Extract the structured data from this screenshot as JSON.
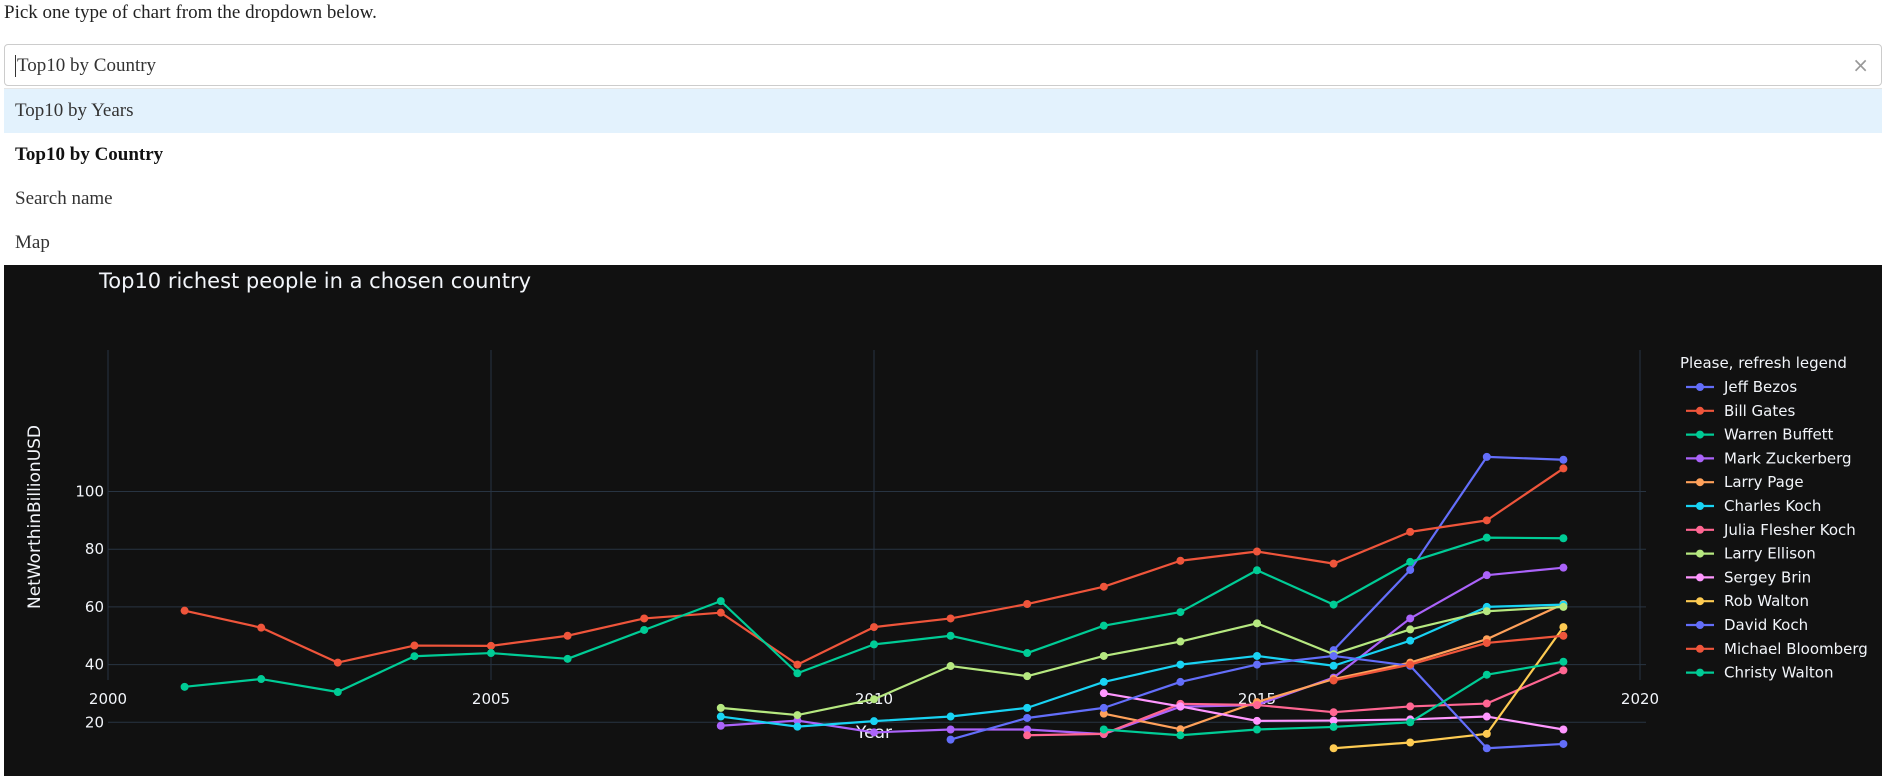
{
  "instruction": "Pick one type of chart from the dropdown below.",
  "dropdown": {
    "value": "Top10 by Country",
    "clear_icon": "×",
    "options": [
      "Top10 by Years",
      "Top10 by Country",
      "Search name",
      "Map"
    ]
  },
  "chart_data": {
    "type": "line",
    "title": "Top10 richest people in a chosen country",
    "xlabel": "Year",
    "ylabel": "NetWorthinBillionUSD",
    "xlim": [
      2000,
      2020
    ],
    "ylim": [
      0,
      120
    ],
    "xticks": [
      2000,
      2005,
      2010,
      2015,
      2020
    ],
    "yticks": [
      20,
      40,
      60,
      80,
      100
    ],
    "grid": true,
    "background": "#111111",
    "legend_title": "Please, refresh legend",
    "legend_position": "right",
    "series": [
      {
        "name": "Jeff Bezos",
        "color": "#636efa",
        "x": [
          2016,
          2017,
          2018,
          2019
        ],
        "y": [
          45,
          72.8,
          112,
          111
        ]
      },
      {
        "name": "Bill Gates",
        "color": "#ef553b",
        "x": [
          2001,
          2002,
          2003,
          2004,
          2005,
          2006,
          2007,
          2008,
          2009,
          2010,
          2011,
          2012,
          2013,
          2014,
          2015,
          2016,
          2017,
          2018,
          2019
        ],
        "y": [
          58.7,
          52.8,
          40.7,
          46.6,
          46.5,
          50,
          56,
          58,
          40,
          53,
          56,
          61,
          67,
          76,
          79.2,
          75,
          86,
          90,
          108
        ]
      },
      {
        "name": "Warren Buffett",
        "color": "#00cc96",
        "x": [
          2001,
          2002,
          2003,
          2004,
          2005,
          2006,
          2007,
          2008,
          2009,
          2010,
          2011,
          2012,
          2013,
          2014,
          2015,
          2016,
          2017,
          2018,
          2019
        ],
        "y": [
          32.3,
          35,
          30.5,
          42.9,
          44,
          42,
          52,
          62,
          37,
          47,
          50,
          44,
          53.5,
          58.2,
          72.7,
          60.8,
          75.6,
          84,
          83.8
        ]
      },
      {
        "name": "Mark Zuckerberg",
        "color": "#ab63fa",
        "x": [
          2008,
          2009,
          2010,
          2011,
          2012,
          2013,
          2014,
          2015,
          2016,
          2017,
          2018,
          2019
        ],
        "y": [
          18.8,
          20.6,
          16.5,
          17.5,
          17.5,
          15.9,
          25.4,
          26,
          35.5,
          56,
          71,
          73.6
        ]
      },
      {
        "name": "Larry Page",
        "color": "#ffa15a",
        "x": [
          2013,
          2014,
          2015,
          2016,
          2017,
          2018,
          2019
        ],
        "y": [
          23,
          17.6,
          27,
          35,
          40.7,
          48.8,
          61
        ]
      },
      {
        "name": "Charles Koch",
        "color": "#19d3f3",
        "x": [
          2008,
          2009,
          2010,
          2011,
          2012,
          2013,
          2014,
          2015,
          2016,
          2017,
          2018,
          2019
        ],
        "y": [
          22,
          18.5,
          20.4,
          22,
          25,
          34,
          40,
          43,
          39.6,
          48.3,
          60,
          60.8
        ]
      },
      {
        "name": "Julia Flesher Koch",
        "color": "#ff6692",
        "x": [
          2012,
          2013,
          2014,
          2015,
          2016,
          2017,
          2018,
          2019
        ],
        "y": [
          15.5,
          16,
          26.4,
          26,
          23.5,
          25.5,
          26.5,
          38
        ]
      },
      {
        "name": "Larry Ellison",
        "color": "#b6e880",
        "x": [
          2008,
          2009,
          2010,
          2011,
          2012,
          2013,
          2014,
          2015,
          2016,
          2017,
          2018,
          2019
        ],
        "y": [
          25,
          22.5,
          28,
          39.5,
          36,
          43,
          48,
          54.3,
          43.6,
          52.2,
          58.5,
          60
        ]
      },
      {
        "name": "Sergey Brin",
        "color": "#ff97ff",
        "x": [
          2013,
          2014,
          2015,
          2016,
          2017,
          2018,
          2019
        ],
        "y": [
          30.1,
          25.5,
          20.5,
          20.6,
          21,
          22,
          17.5
        ]
      },
      {
        "name": "Rob Walton",
        "color": "#fecb52",
        "x": [
          2016,
          2017,
          2018,
          2019
        ],
        "y": [
          11,
          13,
          16,
          53
        ]
      },
      {
        "name": "David Koch",
        "color": "#636efa",
        "x": [
          2011,
          2012,
          2013,
          2014,
          2015,
          2016,
          2017,
          2018,
          2019
        ],
        "y": [
          14,
          21.5,
          25,
          34,
          40,
          43,
          39.6,
          11,
          12.5
        ]
      },
      {
        "name": "Michael Bloomberg",
        "color": "#ef553b",
        "x": [
          2016,
          2017,
          2018,
          2019
        ],
        "y": [
          34.5,
          40,
          47.5,
          50
        ]
      },
      {
        "name": "Christy Walton",
        "color": "#00cc96",
        "x": [
          2013,
          2014,
          2015,
          2016,
          2017,
          2018,
          2019
        ],
        "y": [
          17.5,
          15.5,
          17.5,
          18.4,
          20,
          36.5,
          41
        ]
      }
    ]
  }
}
